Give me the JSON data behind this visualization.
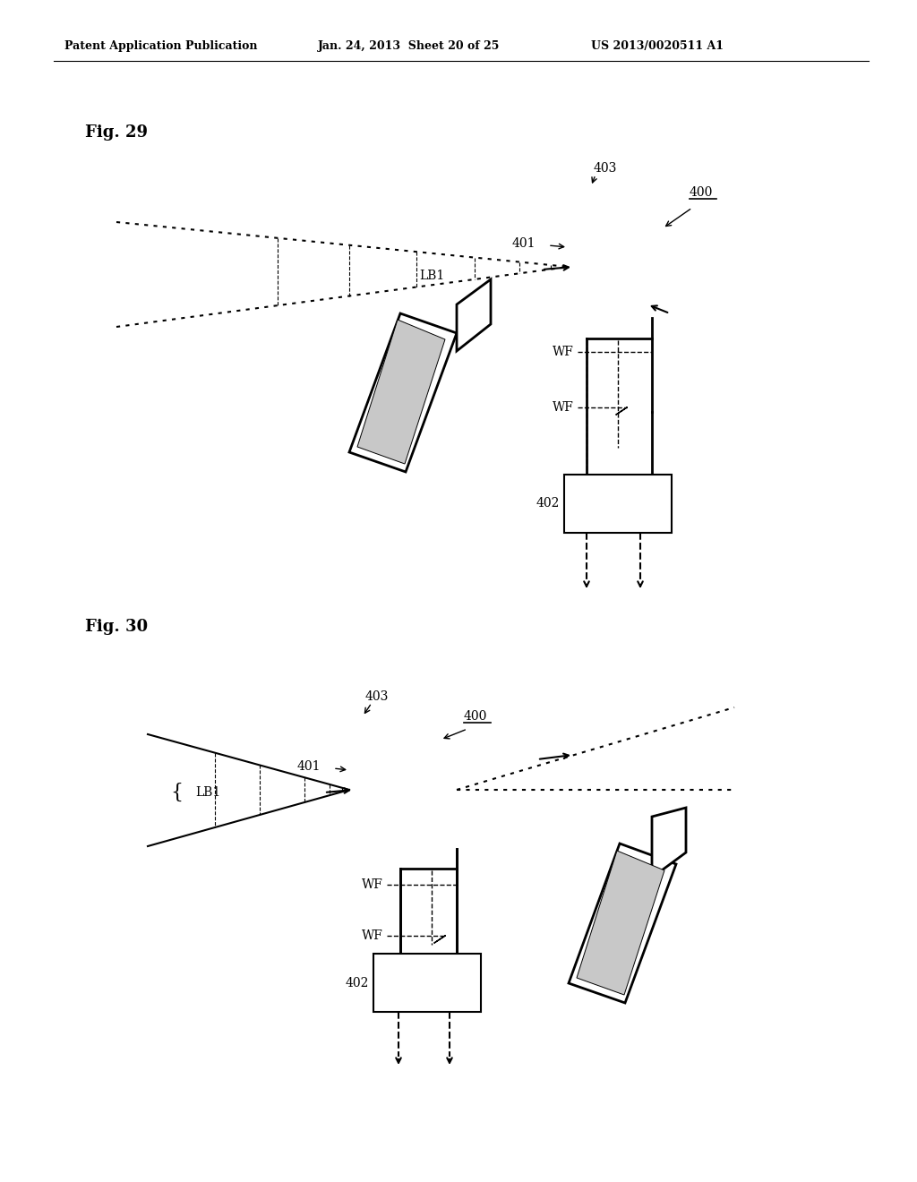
{
  "bg_color": "#ffffff",
  "header_left": "Patent Application Publication",
  "header_mid": "Jan. 24, 2013  Sheet 20 of 25",
  "header_right": "US 2013/0020511 A1",
  "fig29_label": "Fig. 29",
  "fig30_label": "Fig. 30"
}
